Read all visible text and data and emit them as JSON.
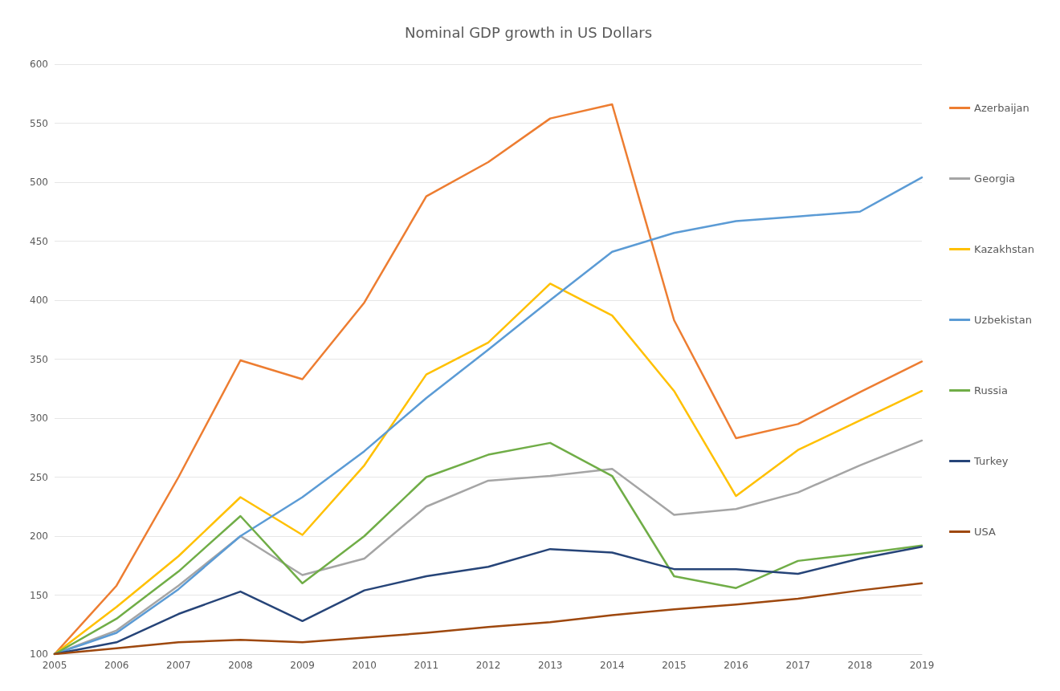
{
  "chart_data": {
    "type": "line",
    "title": "Nominal GDP growth in US Dollars",
    "categories": [
      "2005",
      "2006",
      "2007",
      "2008",
      "2009",
      "2010",
      "2011",
      "2012",
      "2013",
      "2014",
      "2015",
      "2016",
      "2017",
      "2018",
      "2019"
    ],
    "series": [
      {
        "name": "Azerbaijan",
        "color": "#ed7d31",
        "values": [
          100,
          158,
          250,
          349,
          333,
          398,
          488,
          517,
          554,
          566,
          383,
          283,
          295,
          322,
          348
        ]
      },
      {
        "name": "Georgia",
        "color": "#a5a5a5",
        "values": [
          100,
          120,
          158,
          200,
          167,
          181,
          225,
          247,
          251,
          257,
          218,
          223,
          237,
          260,
          281
        ]
      },
      {
        "name": "Kazakhstan",
        "color": "#ffc000",
        "values": [
          100,
          140,
          183,
          233,
          201,
          260,
          337,
          364,
          414,
          387,
          323,
          234,
          273,
          298,
          323
        ]
      },
      {
        "name": "Uzbekistan",
        "color": "#5b9bd5",
        "values": [
          100,
          118,
          155,
          200,
          233,
          272,
          317,
          358,
          400,
          441,
          457,
          467,
          471,
          475,
          504
        ]
      },
      {
        "name": "Russia",
        "color": "#70ad47",
        "values": [
          100,
          130,
          170,
          217,
          160,
          200,
          250,
          269,
          279,
          251,
          166,
          156,
          179,
          185,
          192
        ]
      },
      {
        "name": "Turkey",
        "color": "#264478",
        "values": [
          100,
          110,
          134,
          153,
          128,
          154,
          166,
          174,
          189,
          186,
          172,
          172,
          168,
          181,
          191
        ]
      },
      {
        "name": "USA",
        "color": "#9e480e",
        "values": [
          100,
          105,
          110,
          112,
          110,
          114,
          118,
          123,
          127,
          133,
          138,
          142,
          147,
          154,
          160
        ]
      }
    ],
    "ylim": [
      100,
      600
    ],
    "yticks": [
      100,
      150,
      200,
      250,
      300,
      350,
      400,
      450,
      500,
      550,
      600
    ],
    "grid": "y",
    "legend": "right",
    "marker": "none",
    "line_style": "solid"
  }
}
